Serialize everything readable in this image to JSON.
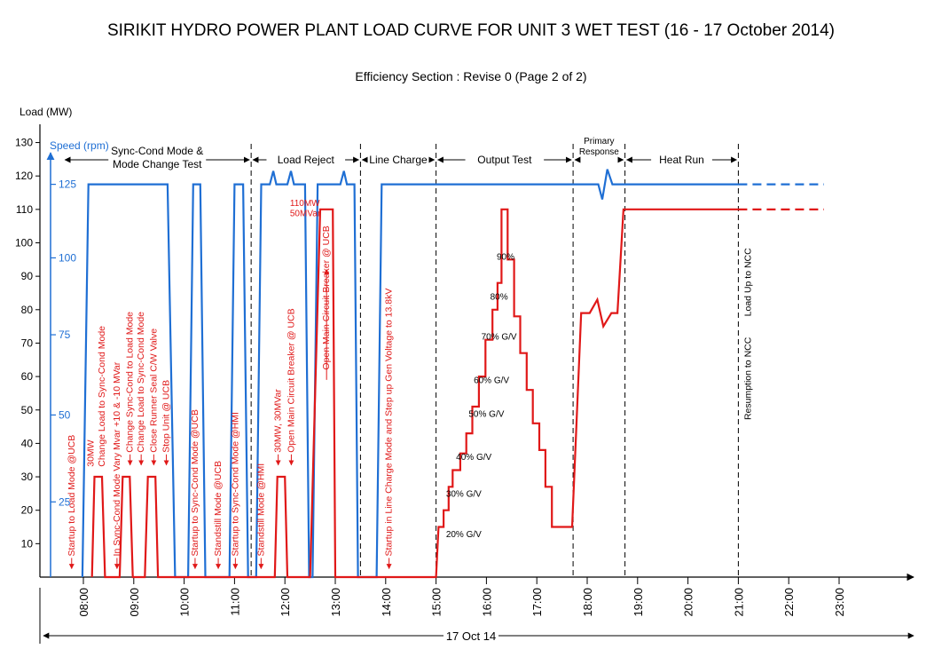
{
  "chart_data": {
    "type": "line",
    "title": "SIRIKIT HYDRO POWER PLANT LOAD CURVE  FOR UNIT 3  WET TEST (16 - 17 October 2014)",
    "subtitle": "Efficiency Section : Revise 0 (Page 2 of 2)",
    "ylabel": "Load (MW)",
    "ylabel2": "Speed (rpm)",
    "xlabel": "17 Oct 14",
    "ylim": [
      0,
      130
    ],
    "xlim": [
      7.25,
      23.55
    ],
    "y_ticks": [
      "10",
      "20",
      "30",
      "40",
      "50",
      "60",
      "70",
      "80",
      "90",
      "100",
      "110",
      "120",
      "130"
    ],
    "speed_ticks": [
      {
        "label": "25",
        "load_pos": 22.5
      },
      {
        "label": "50",
        "load_pos": 48.5
      },
      {
        "label": "75",
        "load_pos": 72.5
      },
      {
        "label": "100",
        "load_pos": 95.5
      },
      {
        "label": "125",
        "load_pos": 117.5
      }
    ],
    "x_ticks": [
      {
        "label": "08:00",
        "x": 8
      },
      {
        "label": "09:00",
        "x": 9
      },
      {
        "label": "10:00",
        "x": 10
      },
      {
        "label": "11:00",
        "x": 11
      },
      {
        "label": "12:00",
        "x": 12
      },
      {
        "label": "13:00",
        "x": 13
      },
      {
        "label": "14:00",
        "x": 14
      },
      {
        "label": "15:00",
        "x": 15
      },
      {
        "label": "16:00",
        "x": 16
      },
      {
        "label": "17:00",
        "x": 17
      },
      {
        "label": "18:00",
        "x": 18
      },
      {
        "label": "19:00",
        "x": 19
      },
      {
        "label": "20:00",
        "x": 20
      },
      {
        "label": "21:00",
        "x": 21
      },
      {
        "label": "22:00",
        "x": 22
      },
      {
        "label": "23:00",
        "x": 23
      }
    ],
    "colors": {
      "speed": "#1f6fd4",
      "load": "#e01818"
    },
    "series": [
      {
        "key": "speed",
        "points": [
          [
            7.98,
            0
          ],
          [
            8.1,
            117.5
          ],
          [
            9.67,
            117.5
          ],
          [
            9.82,
            0
          ],
          [
            10.08,
            0
          ],
          [
            10.18,
            117.5
          ],
          [
            10.32,
            117.5
          ],
          [
            10.42,
            0
          ],
          [
            10.9,
            0
          ],
          [
            11.0,
            117.5
          ],
          [
            11.17,
            117.5
          ],
          [
            11.27,
            0
          ],
          [
            11.43,
            0
          ],
          [
            11.53,
            117.5
          ],
          [
            11.7,
            117.5
          ],
          [
            11.77,
            121.5
          ],
          [
            11.83,
            117.5
          ],
          [
            12.05,
            117.5
          ],
          [
            12.12,
            121.5
          ],
          [
            12.18,
            117.5
          ],
          [
            12.4,
            117.5
          ],
          [
            12.48,
            0
          ],
          [
            12.55,
            0
          ],
          [
            12.65,
            117.5
          ],
          [
            13.1,
            117.5
          ],
          [
            13.17,
            121.5
          ],
          [
            13.23,
            117.5
          ],
          [
            13.38,
            117.5
          ],
          [
            13.45,
            0
          ],
          [
            13.82,
            0
          ],
          [
            13.92,
            117.5
          ],
          [
            18.22,
            117.5
          ],
          [
            18.3,
            113
          ],
          [
            18.4,
            122
          ],
          [
            18.5,
            117.5
          ],
          [
            21.0,
            117.5
          ]
        ],
        "dashed_tail": [
          [
            21.0,
            117.5
          ],
          [
            22.7,
            117.5
          ]
        ]
      },
      {
        "key": "load",
        "points": [
          [
            8.17,
            0
          ],
          [
            8.22,
            30
          ],
          [
            8.37,
            30
          ],
          [
            8.43,
            0
          ],
          [
            8.72,
            0
          ],
          [
            8.78,
            30
          ],
          [
            8.92,
            30
          ],
          [
            8.98,
            0
          ],
          [
            9.22,
            0
          ],
          [
            9.28,
            30
          ],
          [
            9.43,
            30
          ],
          [
            9.48,
            0
          ],
          [
            11.8,
            0
          ],
          [
            11.85,
            30
          ],
          [
            12.0,
            30
          ],
          [
            12.05,
            0
          ],
          [
            12.5,
            0
          ],
          [
            12.7,
            110
          ],
          [
            12.95,
            110
          ],
          [
            13.0,
            0
          ],
          [
            15.0,
            0
          ],
          [
            15.05,
            15
          ],
          [
            15.15,
            15
          ],
          [
            15.15,
            20
          ],
          [
            15.25,
            20
          ],
          [
            15.25,
            27
          ],
          [
            15.33,
            27
          ],
          [
            15.33,
            32
          ],
          [
            15.48,
            32
          ],
          [
            15.48,
            37
          ],
          [
            15.6,
            37
          ],
          [
            15.6,
            43
          ],
          [
            15.72,
            43
          ],
          [
            15.72,
            51
          ],
          [
            15.85,
            51
          ],
          [
            15.85,
            60
          ],
          [
            15.98,
            60
          ],
          [
            15.98,
            71
          ],
          [
            16.12,
            71
          ],
          [
            16.12,
            80
          ],
          [
            16.22,
            80
          ],
          [
            16.22,
            88
          ],
          [
            16.3,
            88
          ],
          [
            16.3,
            110
          ],
          [
            16.42,
            110
          ],
          [
            16.42,
            95
          ],
          [
            16.55,
            95
          ],
          [
            16.55,
            78
          ],
          [
            16.67,
            78
          ],
          [
            16.67,
            67
          ],
          [
            16.8,
            67
          ],
          [
            16.8,
            56
          ],
          [
            16.92,
            56
          ],
          [
            16.92,
            46
          ],
          [
            17.05,
            46
          ],
          [
            17.05,
            38
          ],
          [
            17.17,
            38
          ],
          [
            17.17,
            27
          ],
          [
            17.3,
            27
          ],
          [
            17.3,
            15
          ],
          [
            17.45,
            15
          ],
          [
            17.7,
            15
          ],
          [
            17.88,
            79
          ],
          [
            18.05,
            79
          ],
          [
            18.2,
            83
          ],
          [
            18.32,
            75
          ],
          [
            18.48,
            79
          ],
          [
            18.6,
            79
          ],
          [
            18.72,
            110
          ],
          [
            21.0,
            110
          ]
        ],
        "dashed_tail": [
          [
            21.0,
            110
          ],
          [
            22.7,
            110
          ]
        ]
      }
    ],
    "dashed_markers": [
      11.33,
      13.5,
      15.0,
      17.72,
      18.75,
      21.0
    ],
    "sections": [
      {
        "label": "Sync-Cond Mode &",
        "label2": "Mode Change Test",
        "x1": 7.6,
        "x2": 11.33
      },
      {
        "label": "Load Reject",
        "x1": 11.33,
        "x2": 13.5
      },
      {
        "label": "Line Charge",
        "x1": 13.5,
        "x2": 15.0
      },
      {
        "label": "Output Test",
        "x1": 15.0,
        "x2": 17.72
      },
      {
        "label": "Primary",
        "label2": "Response",
        "x1": 17.72,
        "x2": 18.75
      },
      {
        "label": "Heat Run",
        "x1": 18.75,
        "x2": 21.0
      }
    ],
    "annotations": [
      {
        "text": "Startup to Load Mode @UCB",
        "x": 7.82,
        "y": 2,
        "color": "red",
        "arrow": true
      },
      {
        "text": "30MW",
        "x": 8.2,
        "y": 33,
        "color": "red",
        "arrow": false
      },
      {
        "text": "Change Load to Sync-Cond Mode",
        "x": 8.42,
        "y": 33,
        "color": "red",
        "arrow": false
      },
      {
        "text": "In Sync-Cond Mode Vary Mvar +10 & -10 MVar",
        "x": 8.72,
        "y": 2,
        "color": "red",
        "arrow": true
      },
      {
        "text": "Change Sync-Cond to Load Mode",
        "x": 8.98,
        "y": 33,
        "color": "red",
        "arrow": true
      },
      {
        "text": "Change Load to Sync-Cond Mode",
        "x": 9.2,
        "y": 33,
        "color": "red",
        "arrow": true
      },
      {
        "text": "Close Runner Seal C/W Valve",
        "x": 9.45,
        "y": 33,
        "color": "red",
        "arrow": true
      },
      {
        "text": "Stop Unit @ UCB",
        "x": 9.7,
        "y": 33,
        "color": "red",
        "arrow": true
      },
      {
        "text": "Startup to Sync-Cond Mode @UCB",
        "x": 10.27,
        "y": 2,
        "color": "red",
        "arrow": true
      },
      {
        "text": "Standstill Mode @UCB",
        "x": 10.73,
        "y": 2,
        "color": "red",
        "arrow": true
      },
      {
        "text": "Startup to Sync-Cond Mode @HMI",
        "x": 11.07,
        "y": 2,
        "color": "red",
        "arrow": true
      },
      {
        "text": "Standstill Mode @HMI",
        "x": 11.58,
        "y": 2,
        "color": "red",
        "arrow": true
      },
      {
        "text": "30MW, 30MVar",
        "x": 11.92,
        "y": 33,
        "color": "red",
        "arrow": true
      },
      {
        "text": "Open Main Circuit Breaker @ UCB",
        "x": 12.18,
        "y": 33,
        "color": "red",
        "arrow": true
      },
      {
        "text": "Open Main Circuit Breaker @ UCB",
        "x": 12.88,
        "y": 62,
        "color": "red",
        "arrow": true,
        "arrow_dir": "up"
      },
      {
        "text": "Startup in Line Charge Mode and Step up Gen Voltage to 13.8kV",
        "x": 14.12,
        "y": 2,
        "color": "red",
        "arrow": true
      },
      {
        "text": "Resumption to NCC",
        "x": 21.25,
        "y": 47,
        "color": "black",
        "arrow": false
      },
      {
        "text": "Load Up to NCC",
        "x": 21.25,
        "y": 78,
        "color": "black",
        "arrow": false
      }
    ],
    "point_labels": [
      {
        "text": "110MW",
        "x": 12.1,
        "y": 111
      },
      {
        "text": "50MVar",
        "x": 12.1,
        "y": 108
      },
      {
        "text": "20% G/V",
        "x": 15.55,
        "y": 12
      },
      {
        "text": "30% G/V",
        "x": 15.55,
        "y": 24
      },
      {
        "text": "40% G/V",
        "x": 15.75,
        "y": 35
      },
      {
        "text": "50% G/V",
        "x": 16.0,
        "y": 48
      },
      {
        "text": "60% G/V",
        "x": 16.1,
        "y": 58
      },
      {
        "text": "70% G/V",
        "x": 16.25,
        "y": 71
      },
      {
        "text": "80%",
        "x": 16.25,
        "y": 83
      },
      {
        "text": "90%",
        "x": 16.38,
        "y": 95
      }
    ]
  }
}
